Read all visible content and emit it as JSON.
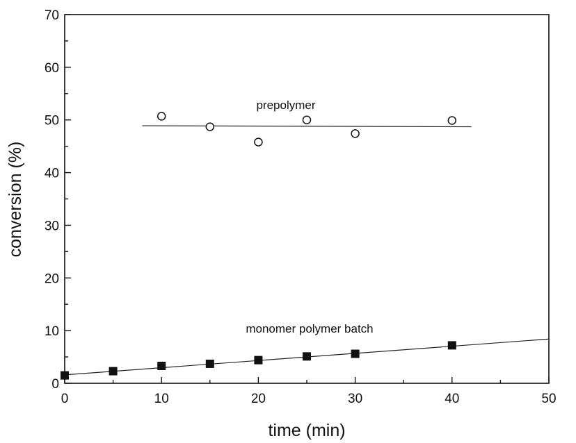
{
  "chart_data": {
    "type": "scatter",
    "title": "",
    "xlabel": "time (min)",
    "ylabel": "conversion (%)",
    "xlim": [
      0,
      50
    ],
    "ylim": [
      0,
      70
    ],
    "x_ticks": [
      0,
      10,
      20,
      30,
      40,
      50
    ],
    "y_ticks": [
      0,
      10,
      20,
      30,
      40,
      50,
      60,
      70
    ],
    "grid": false,
    "series": [
      {
        "name": "prepolymer",
        "marker": "open-circle",
        "x": [
          10,
          15,
          20,
          25,
          30,
          40
        ],
        "y": [
          50.7,
          48.7,
          45.8,
          50.0,
          47.4,
          49.9
        ],
        "fit": {
          "x": [
            8,
            42
          ],
          "y": [
            48.9,
            48.7
          ]
        }
      },
      {
        "name": "monomer polymer batch",
        "marker": "filled-square",
        "x": [
          0,
          5,
          10,
          15,
          20,
          25,
          30,
          40
        ],
        "y": [
          1.5,
          2.3,
          3.3,
          3.7,
          4.4,
          5.1,
          5.6,
          7.2
        ],
        "fit": {
          "x": [
            0,
            50
          ],
          "y": [
            1.6,
            8.4
          ]
        }
      }
    ],
    "annotations": [
      "prepolymer",
      "monomer polymer batch"
    ]
  }
}
